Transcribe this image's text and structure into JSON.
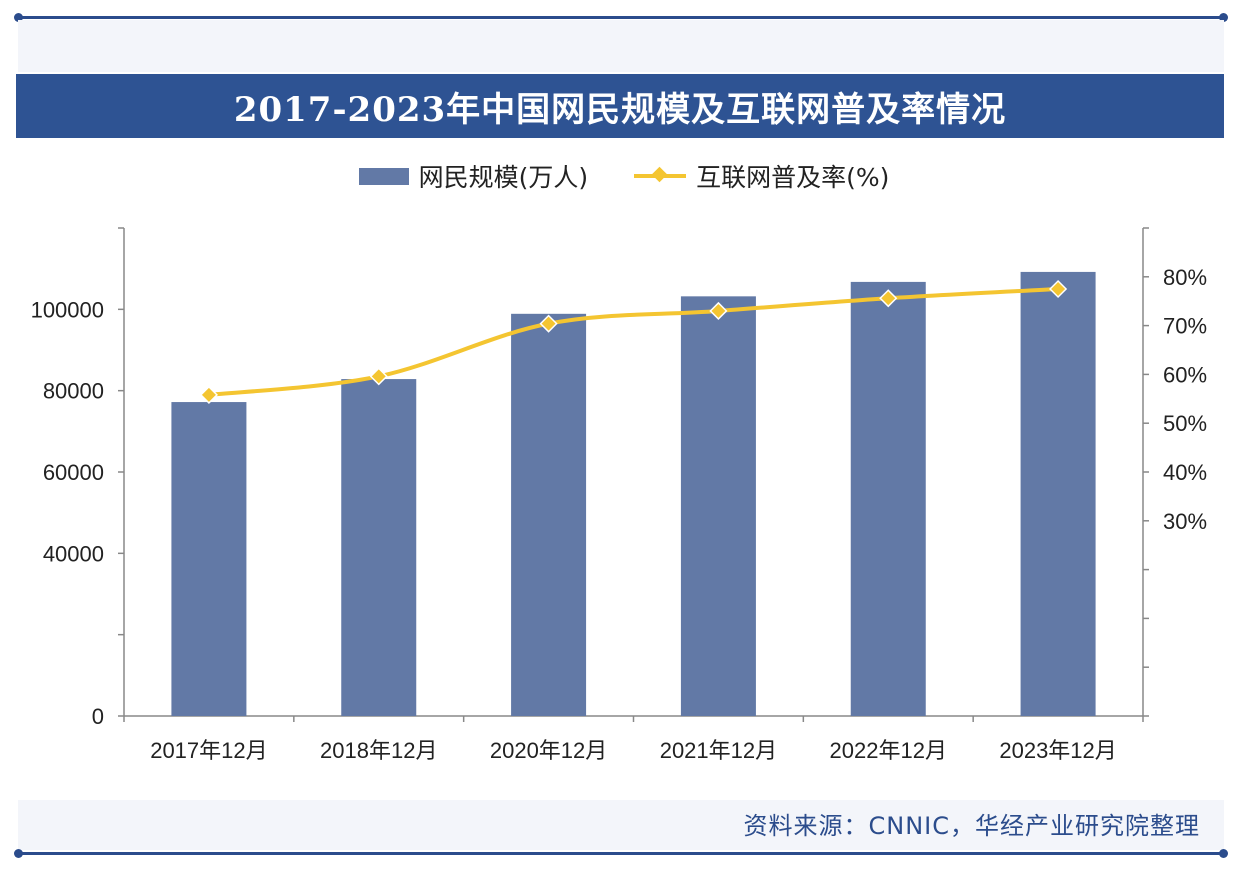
{
  "title": "2017-2023年中国网民规模及互联网普及率情况",
  "legend": {
    "bar_label": "网民规模(万人)",
    "line_label": "互联网普及率(%)"
  },
  "source": "资料来源：CNNIC，华经产业研究院整理",
  "colors": {
    "bar": "#6279a6",
    "line": "#f4c531",
    "title_bar": "#2e5393",
    "rule": "#2b4c8c"
  },
  "chart_data": {
    "type": "bar",
    "title": "2017-2023年中国网民规模及互联网普及率情况",
    "categories": [
      "2017年12月",
      "2018年12月",
      "2020年12月",
      "2021年12月",
      "2022年12月",
      "2023年12月"
    ],
    "series": [
      {
        "name": "网民规模(万人)",
        "type": "bar",
        "axis": "left",
        "values": [
          77198,
          82851,
          98899,
          103195,
          106744,
          109200
        ]
      },
      {
        "name": "互联网普及率(%)",
        "type": "line",
        "axis": "right",
        "values": [
          55.8,
          59.6,
          70.4,
          73.0,
          75.6,
          77.5
        ]
      }
    ],
    "y_left": {
      "ylim": [
        0,
        120000
      ],
      "ticks": [
        0,
        20000,
        40000,
        60000,
        80000,
        100000,
        120000
      ],
      "tick_labels": [
        "0",
        "",
        "40000",
        "60000",
        "80000",
        "100000",
        ""
      ]
    },
    "y_right": {
      "ylim": [
        -10,
        90
      ],
      "ticks": [
        -10,
        0,
        10,
        20,
        30,
        40,
        50,
        60,
        70,
        80,
        90
      ],
      "tick_labels": [
        "",
        "",
        "",
        "",
        "30%",
        "40%",
        "50%",
        "60%",
        "70%",
        "80%",
        ""
      ]
    },
    "legend_position": "top-center",
    "grid": false
  }
}
